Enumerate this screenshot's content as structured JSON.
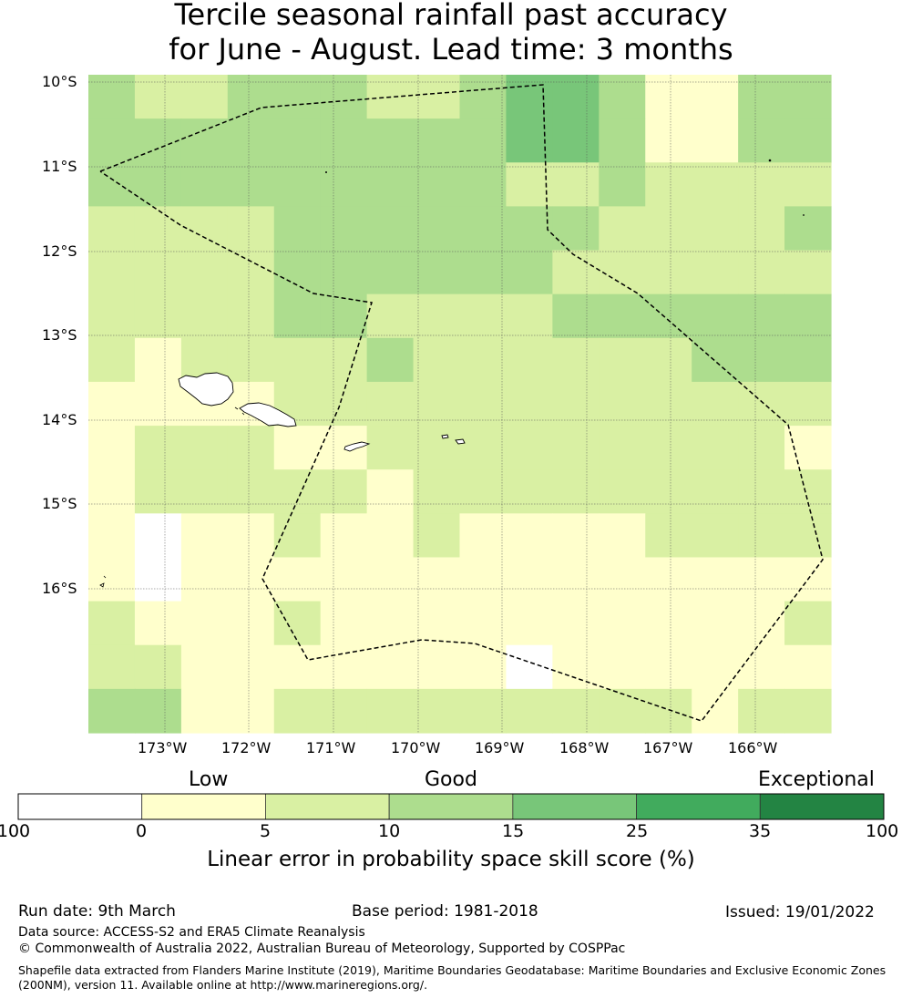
{
  "title_line1": "Tercile seasonal rainfall past accuracy",
  "title_line2": "for June - August. Lead time: 3 months",
  "map": {
    "lon_ticks": [
      "173°W",
      "172°W",
      "171°W",
      "170°W",
      "169°W",
      "168°W",
      "167°W",
      "166°W"
    ],
    "lat_ticks": [
      "10°S",
      "11°S",
      "12°S",
      "13°S",
      "14°S",
      "15°S",
      "16°S"
    ],
    "grid": [
      [
        3,
        2,
        2,
        3,
        3,
        3,
        2,
        2,
        3,
        4,
        4,
        3,
        1,
        1,
        3,
        3
      ],
      [
        3,
        3,
        3,
        3,
        3,
        3,
        3,
        3,
        3,
        4,
        4,
        3,
        1,
        1,
        3,
        3
      ],
      [
        3,
        3,
        3,
        3,
        3,
        3,
        3,
        3,
        3,
        2,
        2,
        3,
        2,
        2,
        2,
        2
      ],
      [
        2,
        2,
        2,
        2,
        3,
        3,
        3,
        3,
        3,
        3,
        3,
        2,
        2,
        2,
        2,
        3
      ],
      [
        2,
        2,
        2,
        2,
        3,
        3,
        3,
        3,
        3,
        3,
        2,
        2,
        2,
        2,
        2,
        2
      ],
      [
        2,
        2,
        2,
        2,
        3,
        3,
        2,
        2,
        2,
        2,
        3,
        3,
        3,
        3,
        3,
        3
      ],
      [
        2,
        1,
        2,
        2,
        2,
        2,
        3,
        2,
        2,
        2,
        2,
        2,
        2,
        3,
        3,
        3
      ],
      [
        1,
        1,
        1,
        1,
        2,
        2,
        2,
        2,
        2,
        2,
        2,
        2,
        2,
        2,
        2,
        2
      ],
      [
        1,
        2,
        2,
        2,
        1,
        1,
        2,
        2,
        2,
        2,
        2,
        2,
        2,
        2,
        2,
        1
      ],
      [
        1,
        2,
        2,
        2,
        2,
        2,
        1,
        2,
        2,
        2,
        2,
        2,
        2,
        2,
        2,
        2
      ],
      [
        1,
        0,
        1,
        1,
        2,
        1,
        1,
        2,
        1,
        1,
        1,
        1,
        2,
        2,
        2,
        2
      ],
      [
        1,
        0,
        1,
        1,
        1,
        1,
        1,
        1,
        1,
        1,
        1,
        1,
        1,
        1,
        1,
        1
      ],
      [
        2,
        1,
        1,
        1,
        2,
        1,
        1,
        1,
        1,
        1,
        1,
        1,
        1,
        1,
        1,
        2
      ],
      [
        2,
        2,
        1,
        1,
        1,
        1,
        1,
        1,
        1,
        0,
        1,
        1,
        1,
        1,
        1,
        1
      ],
      [
        3,
        3,
        1,
        1,
        2,
        2,
        2,
        2,
        2,
        2,
        2,
        2,
        2,
        1,
        2,
        2
      ]
    ]
  },
  "colorbar": {
    "categories": [
      "Low",
      "Good",
      "Exceptional"
    ],
    "ticks": [
      "-100",
      "0",
      "5",
      "10",
      "15",
      "25",
      "35",
      "100"
    ],
    "colors": [
      "#ffffff",
      "#ffffcc",
      "#d9f0a3",
      "#addd8e",
      "#78c679",
      "#41ab5d",
      "#238443"
    ],
    "title": "Linear error in probability space skill score (%)"
  },
  "footer": {
    "run_date": "Run date: 9th March",
    "base_period": "Base period: 1981-2018",
    "issued": "Issued: 19/01/2022",
    "data_source": "Data source: ACCESS-S2 and ERA5 Climate Reanalysis",
    "copyright": "© Commonwealth of Australia 2022, Australian Bureau of Meteorology, Supported by COSPPac",
    "shapefile_line1": "Shapefile data extracted from Flanders Marine Institute (2019), Maritime Boundaries Geodatabase: Maritime Boundaries and Exclusive Economic Zones",
    "shapefile_line2": "(200NM), version 11. Available online at http://www.marineregions.org/."
  }
}
